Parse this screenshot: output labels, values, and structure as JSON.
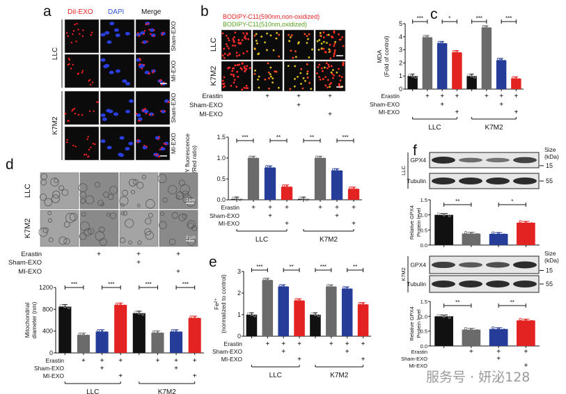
{
  "colors": {
    "control": "#111111",
    "erastin": "#6b6b6b",
    "sham": "#263c99",
    "mi": "#e32222",
    "green_text": "#5aa020",
    "red_text": "#e32222",
    "blue_text": "#3355cc"
  },
  "treatment_labels": [
    "Erastin",
    "Sham-EXO",
    "MI-EXO"
  ],
  "panel_a": {
    "letter": "a",
    "headers": [
      "DiI-EXO",
      "DAPI",
      "Merge"
    ],
    "rows": [
      "Sham-EXO",
      "MI-EXO",
      "Sham-EXO",
      "MI-EXO"
    ],
    "cell_lines": [
      "LLC",
      "K7M2"
    ]
  },
  "panel_b": {
    "letter": "b",
    "legend": [
      "BODIPY-C11(590nm,non-oxidized)",
      "BODIPY-C11(510nm,oxidized)"
    ],
    "cell_lines": [
      "LLC",
      "K7M2"
    ],
    "treatments": {
      "Erastin": [
        false,
        true,
        true,
        true
      ],
      "Sham-EXO": [
        false,
        false,
        true,
        false
      ],
      "MI-EXO": [
        false,
        false,
        false,
        true
      ]
    }
  },
  "panel_c": {
    "letter": "c"
  },
  "panel_d": {
    "letter": "d",
    "cell_lines": [
      "LLC",
      "K7M2"
    ],
    "scale_bar": "2 μm",
    "treatments": {
      "Erastin": [
        false,
        true,
        true,
        true
      ],
      "Sham-EXO": [
        false,
        false,
        true,
        false
      ],
      "MI-EXO": [
        false,
        false,
        false,
        true
      ]
    }
  },
  "panel_e": {
    "letter": "e"
  },
  "panel_f": {
    "letter": "f",
    "size_label": [
      "Size",
      "(kDa)"
    ],
    "blots": [
      {
        "cell_line": "LLC",
        "bands": [
          "GPX4",
          "Tubulin"
        ],
        "markers": [
          "15",
          "55"
        ]
      },
      {
        "cell_line": "K7M2",
        "bands": [
          "GPX4",
          "Tubulin"
        ],
        "markers": [
          "15",
          "55"
        ]
      }
    ]
  },
  "watermark": "服务号 · 妍泌128",
  "chart_data": [
    {
      "panel": "b",
      "type": "bar",
      "ylabel": [
        "C11-BODIPY fluorescence",
        "(Green/Red ratio)"
      ],
      "ylim": [
        0,
        1.5
      ],
      "yticks": [
        "0.0",
        "0.5",
        "1.0",
        "1.5"
      ],
      "groups": [
        "LLC",
        "K7M2"
      ],
      "values": [
        0.02,
        1.0,
        0.77,
        0.31,
        0.02,
        1.0,
        0.7,
        0.26
      ],
      "significance": [
        {
          "from": 0,
          "to": 1,
          "label": "***"
        },
        {
          "from": 2,
          "to": 3,
          "label": "**"
        },
        {
          "from": 4,
          "to": 5,
          "label": "**"
        },
        {
          "from": 6,
          "to": 7,
          "label": "***"
        }
      ],
      "treatments": {
        "Erastin": [
          false,
          true,
          true,
          true,
          false,
          true,
          true,
          true
        ],
        "Sham-EXO": [
          false,
          false,
          true,
          false,
          false,
          false,
          true,
          false
        ],
        "MI-EXO": [
          false,
          false,
          false,
          true,
          false,
          false,
          false,
          true
        ]
      }
    },
    {
      "panel": "c",
      "type": "bar",
      "ylabel": [
        "MDA",
        "(Fold of control)"
      ],
      "ylim": [
        0,
        5
      ],
      "yticks": [
        "0",
        "1",
        "2",
        "3",
        "4",
        "5"
      ],
      "groups": [
        "LLC",
        "K7M2"
      ],
      "values": [
        1.0,
        3.95,
        3.5,
        2.8,
        1.0,
        4.7,
        2.2,
        0.8
      ],
      "significance": [
        {
          "from": 0,
          "to": 1,
          "label": "***"
        },
        {
          "from": 2,
          "to": 3,
          "label": "*"
        },
        {
          "from": 4,
          "to": 5,
          "label": "***"
        },
        {
          "from": 6,
          "to": 7,
          "label": "***"
        }
      ],
      "treatments": {
        "Erastin": [
          false,
          true,
          true,
          true,
          false,
          true,
          true,
          true
        ],
        "Sham-EXO": [
          false,
          false,
          true,
          false,
          false,
          false,
          true,
          false
        ],
        "MI-EXO": [
          false,
          false,
          false,
          true,
          false,
          false,
          false,
          true
        ]
      }
    },
    {
      "panel": "d",
      "type": "bar",
      "ylabel": [
        "Mitochondrial",
        "diameter (nm)"
      ],
      "ylim": [
        0,
        1200
      ],
      "yticks": [
        "0",
        "400",
        "800",
        "1200"
      ],
      "groups": [
        "LLC",
        "K7M2"
      ],
      "values": [
        850,
        330,
        390,
        880,
        730,
        370,
        390,
        640
      ],
      "significance": [
        {
          "from": 0,
          "to": 1,
          "label": "***"
        },
        {
          "from": 2,
          "to": 3,
          "label": "***"
        },
        {
          "from": 4,
          "to": 5,
          "label": "***"
        },
        {
          "from": 6,
          "to": 7,
          "label": "***"
        }
      ],
      "treatments": {
        "Erastin": [
          false,
          true,
          true,
          true,
          false,
          true,
          true,
          true
        ],
        "Sham-EXO": [
          false,
          false,
          true,
          false,
          false,
          false,
          true,
          false
        ],
        "MI-EXO": [
          false,
          false,
          false,
          true,
          false,
          false,
          false,
          true
        ]
      }
    },
    {
      "panel": "e",
      "type": "bar",
      "ylabel": [
        "Fe²⁺",
        "(normalized to control)"
      ],
      "ylim": [
        0,
        3
      ],
      "yticks": [
        "0",
        "1",
        "2",
        "3"
      ],
      "groups": [
        "LLC",
        "K7M2"
      ],
      "values": [
        1.0,
        2.6,
        2.3,
        1.65,
        1.0,
        2.3,
        2.2,
        1.47
      ],
      "significance": [
        {
          "from": 0,
          "to": 1,
          "label": "***"
        },
        {
          "from": 2,
          "to": 3,
          "label": "**"
        },
        {
          "from": 4,
          "to": 5,
          "label": "***"
        },
        {
          "from": 6,
          "to": 7,
          "label": "**"
        }
      ],
      "treatments": {
        "Erastin": [
          false,
          true,
          true,
          true,
          false,
          true,
          true,
          true
        ],
        "Sham-EXO": [
          false,
          false,
          true,
          false,
          false,
          false,
          true,
          false
        ],
        "MI-EXO": [
          false,
          false,
          false,
          true,
          false,
          false,
          false,
          true
        ]
      }
    },
    {
      "panel": "f-LLC",
      "type": "bar",
      "ylabel": [
        "Relative GPX4",
        "Protein level"
      ],
      "ylim": [
        0,
        1.5
      ],
      "yticks": [
        "0.0",
        "0.5",
        "1.0",
        "1.5"
      ],
      "groups": [],
      "values": [
        1.0,
        0.38,
        0.37,
        0.74
      ],
      "significance": [
        {
          "from": 0,
          "to": 1,
          "label": "**"
        },
        {
          "from": 2,
          "to": 3,
          "label": "*"
        }
      ],
      "treatments": {}
    },
    {
      "panel": "f-K7M2",
      "type": "bar",
      "ylabel": [
        "Relative GPX4",
        "Protein level"
      ],
      "ylim": [
        0,
        1.5
      ],
      "yticks": [
        "0.0",
        "0.5",
        "1.0",
        "1.5"
      ],
      "groups": [],
      "values": [
        1.0,
        0.55,
        0.57,
        0.86
      ],
      "significance": [
        {
          "from": 0,
          "to": 1,
          "label": "**"
        },
        {
          "from": 2,
          "to": 3,
          "label": "**"
        }
      ],
      "treatments": {
        "Erastin": [
          false,
          true,
          true,
          true
        ],
        "Sham-EXO": [
          false,
          false,
          true,
          false
        ],
        "MI-EXO": [
          false,
          false,
          false,
          true
        ]
      }
    }
  ]
}
